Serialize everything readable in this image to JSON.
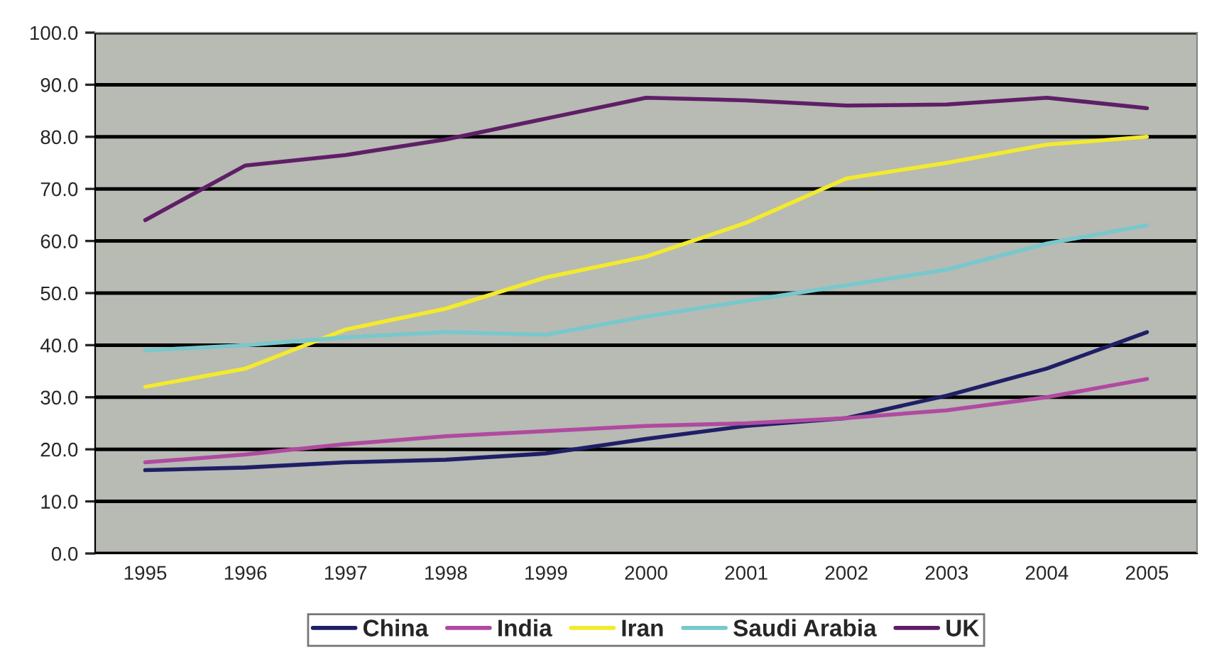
{
  "chart_data": {
    "type": "line",
    "categories": [
      "1995",
      "1996",
      "1997",
      "1998",
      "1999",
      "2000",
      "2001",
      "2002",
      "2003",
      "2004",
      "2005"
    ],
    "series": [
      {
        "name": "China",
        "color": "#1f1f66",
        "values": [
          16.0,
          16.5,
          17.5,
          18.0,
          19.2,
          22.0,
          24.5,
          26.0,
          30.3,
          35.5,
          42.5
        ]
      },
      {
        "name": "India",
        "color": "#b04aa0",
        "values": [
          17.5,
          19.0,
          21.0,
          22.5,
          23.5,
          24.5,
          25.0,
          26.0,
          27.5,
          30.0,
          33.5
        ]
      },
      {
        "name": "Iran",
        "color": "#f2ea2e",
        "values": [
          32.0,
          35.5,
          43.0,
          47.0,
          53.0,
          57.0,
          63.5,
          72.0,
          75.0,
          78.5,
          80.0
        ]
      },
      {
        "name": "Saudi Arabia",
        "color": "#78c8cc",
        "values": [
          39.0,
          40.0,
          41.5,
          42.5,
          42.0,
          45.5,
          48.5,
          51.5,
          54.5,
          59.5,
          63.0
        ]
      },
      {
        "name": "UK",
        "color": "#5e1f66",
        "values": [
          64.0,
          74.5,
          76.5,
          79.5,
          83.5,
          87.5,
          87.0,
          86.0,
          86.2,
          87.5,
          85.5
        ]
      }
    ],
    "ylim": [
      0,
      100
    ],
    "yticks": [
      {
        "value": 0,
        "label": "0.0"
      },
      {
        "value": 10,
        "label": "10.0"
      },
      {
        "value": 20,
        "label": "20.0"
      },
      {
        "value": 30,
        "label": "30.0"
      },
      {
        "value": 40,
        "label": "40.0"
      },
      {
        "value": 50,
        "label": "50.0"
      },
      {
        "value": 60,
        "label": "60.0"
      },
      {
        "value": 70,
        "label": "70.0"
      },
      {
        "value": 80,
        "label": "80.0"
      },
      {
        "value": 90,
        "label": "90.0"
      },
      {
        "value": 100,
        "label": "100.0"
      }
    ],
    "grid": "y",
    "legend": "bottom",
    "marker": "none",
    "line_style": "solid"
  }
}
